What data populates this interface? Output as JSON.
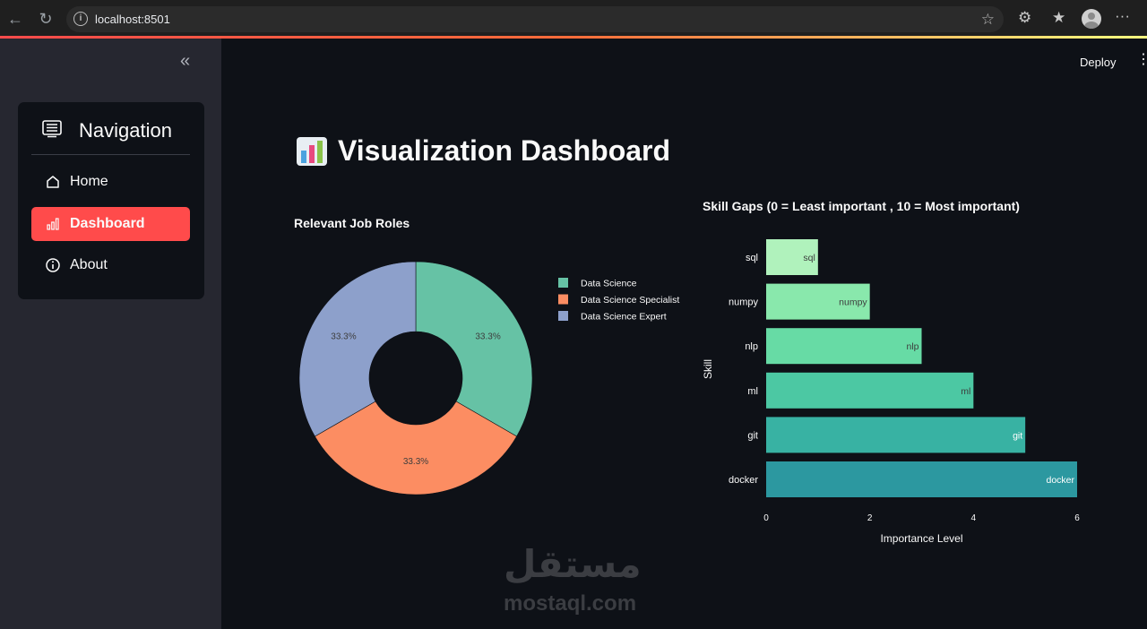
{
  "browser": {
    "url": "localhost:8501",
    "icons": [
      "back-icon",
      "reload-icon",
      "info-icon",
      "star-icon",
      "extensions-icon",
      "favorites-icon",
      "profile-avatar",
      "more-icon"
    ]
  },
  "sidebar": {
    "collapse_icon": "double-chevron-left-icon",
    "nav_title": "Navigation",
    "items": [
      {
        "label": "Home",
        "icon": "home-icon",
        "active": false
      },
      {
        "label": "Dashboard",
        "icon": "bar-chart-icon",
        "active": true
      },
      {
        "label": "About",
        "icon": "info-icon",
        "active": false
      }
    ]
  },
  "header": {
    "deploy_label": "Deploy",
    "menu_icon": "kebab-menu-icon"
  },
  "main": {
    "title": "Visualization Dashboard",
    "title_icon": "bar-chart-emoji-icon"
  },
  "colors": {
    "accent": "#ff4b4b",
    "background": "#0e1117",
    "sidebar": "#262730"
  },
  "chart_data": [
    {
      "type": "pie",
      "title": "Relevant Job Roles",
      "labels": [
        "Data Science",
        "Data Science Specialist",
        "Data Science Expert"
      ],
      "values": [
        33.3,
        33.3,
        33.3
      ],
      "value_labels": [
        "33.3%",
        "33.3%",
        "33.3%"
      ],
      "colors": [
        "#66c2a5",
        "#fc8d62",
        "#8da0cb"
      ],
      "hole": true,
      "legend": "right"
    },
    {
      "type": "bar",
      "orientation": "horizontal",
      "title": "Skill Gaps (0 = Least important , 10 = Most important)",
      "categories": [
        "sql",
        "numpy",
        "nlp",
        "ml",
        "git",
        "docker"
      ],
      "values": [
        1,
        2,
        3,
        4,
        5,
        6
      ],
      "colors": [
        "#b0f2bc",
        "#89e8ac",
        "#67dba5",
        "#4cc8a3",
        "#38b2a3",
        "#2c98a0"
      ],
      "xlabel": "Importance Level",
      "ylabel": "Skill",
      "xticks": [
        "0",
        "2",
        "4",
        "6"
      ],
      "xlim": [
        0,
        6
      ]
    }
  ],
  "watermark": {
    "arabic": "مستقل",
    "latin": "mostaql.com"
  }
}
